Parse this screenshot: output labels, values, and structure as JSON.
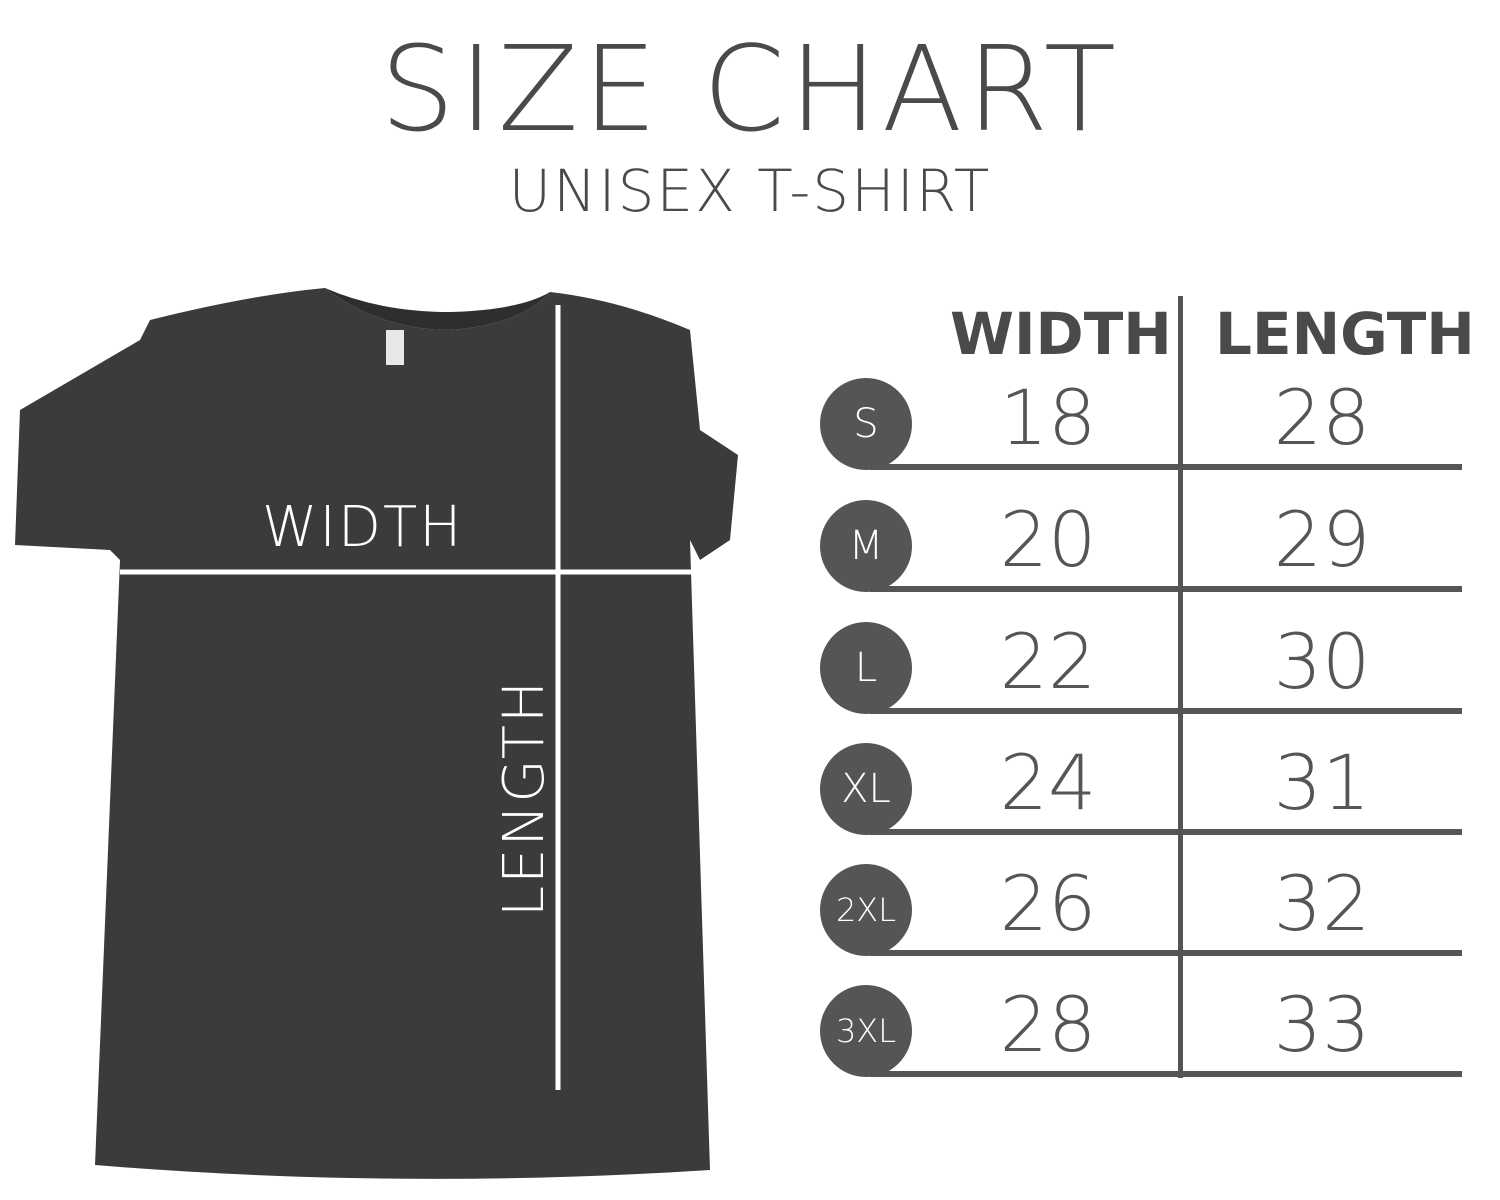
{
  "title": "SIZE CHART",
  "subtitle": "UNISEX T-SHIRT",
  "shirt": {
    "width_label": "WIDTH",
    "length_label": "LENGTH",
    "color": "#3a3a3a"
  },
  "table": {
    "headers": [
      "WIDTH",
      "LENGTH"
    ],
    "rows": [
      {
        "size": "S",
        "width": "18",
        "length": "28"
      },
      {
        "size": "M",
        "width": "20",
        "length": "29"
      },
      {
        "size": "L",
        "width": "22",
        "length": "30"
      },
      {
        "size": "XL",
        "width": "24",
        "length": "31"
      },
      {
        "size": "2XL",
        "width": "26",
        "length": "32"
      },
      {
        "size": "3XL",
        "width": "28",
        "length": "33"
      }
    ]
  },
  "colors": {
    "text": "#555555",
    "circle": "#555555"
  }
}
